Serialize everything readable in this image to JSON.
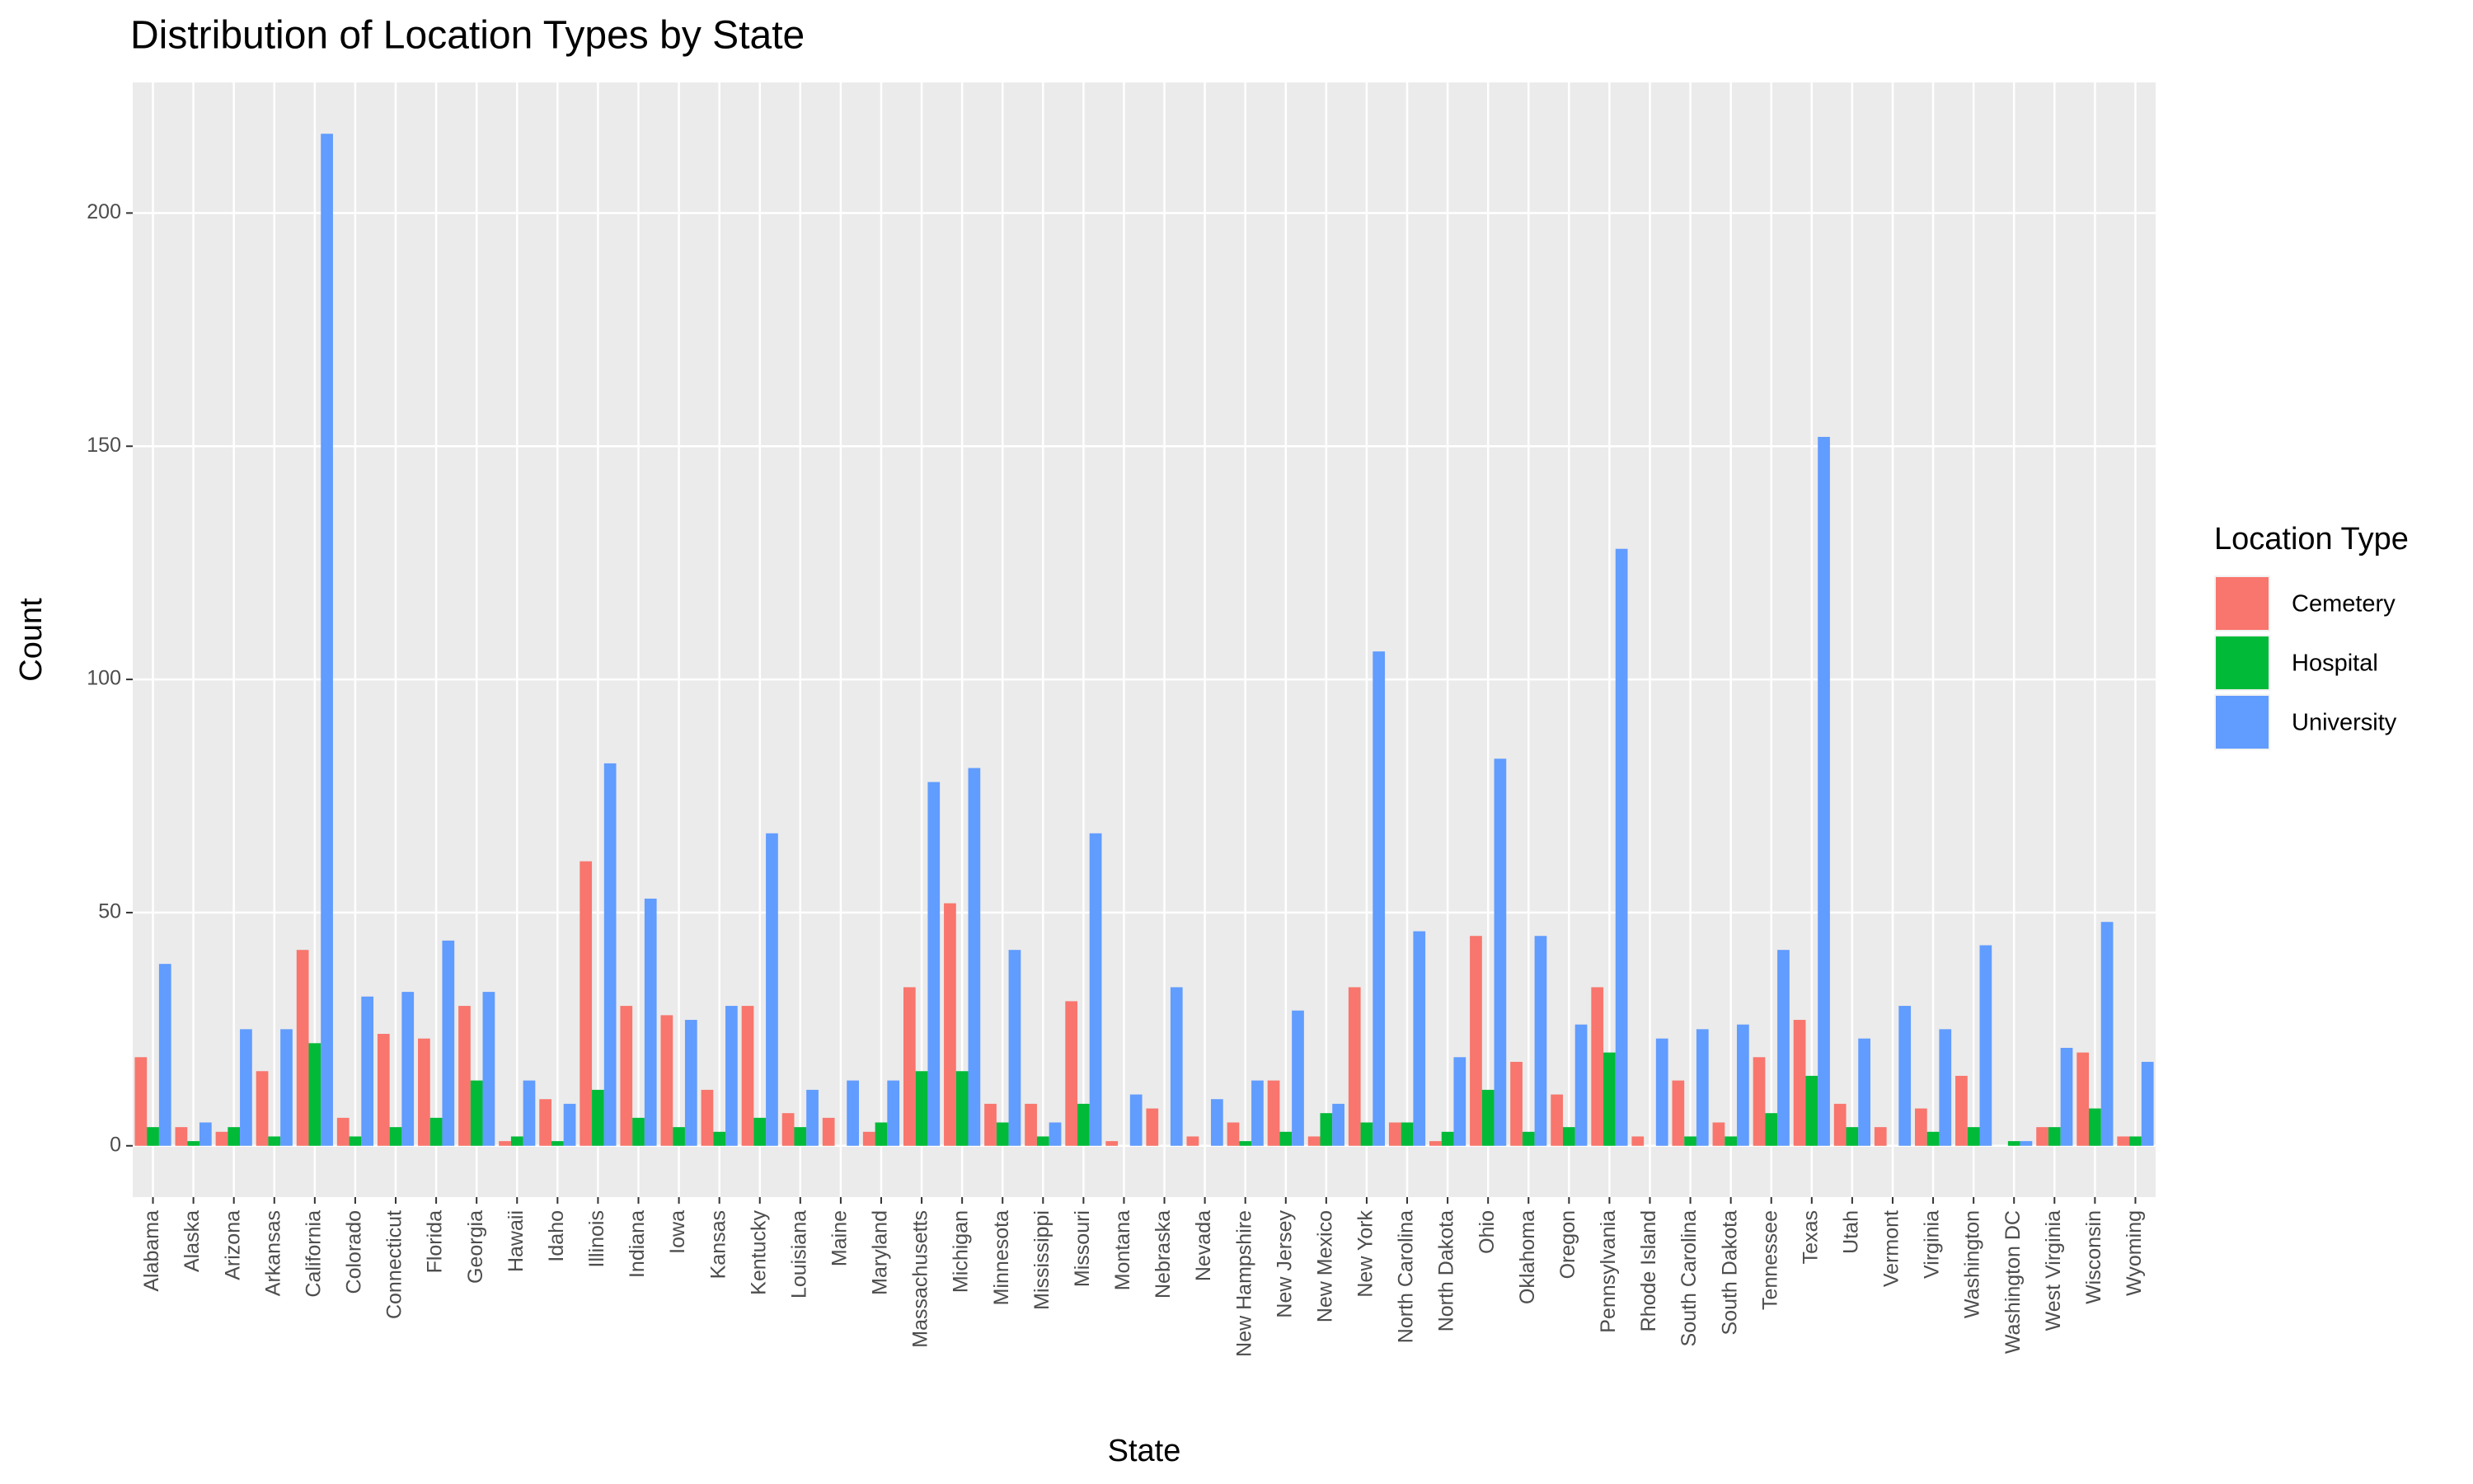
{
  "chart_data": {
    "type": "bar",
    "title": "Distribution of Location Types by State",
    "x_label": "State",
    "y_label": "Count",
    "legend_title": "Location Type",
    "categories": [
      "Alabama",
      "Alaska",
      "Arizona",
      "Arkansas",
      "California",
      "Colorado",
      "Connecticut",
      "Florida",
      "Georgia",
      "Hawaii",
      "Idaho",
      "Illinois",
      "Indiana",
      "Iowa",
      "Kansas",
      "Kentucky",
      "Louisiana",
      "Maine",
      "Maryland",
      "Massachusetts",
      "Michigan",
      "Minnesota",
      "Mississippi",
      "Missouri",
      "Montana",
      "Nebraska",
      "Nevada",
      "New Hampshire",
      "New Jersey",
      "New Mexico",
      "New York",
      "North Carolina",
      "North Dakota",
      "Ohio",
      "Oklahoma",
      "Oregon",
      "Pennsylvania",
      "Rhode Island",
      "South Carolina",
      "South Dakota",
      "Tennessee",
      "Texas",
      "Utah",
      "Vermont",
      "Virginia",
      "Washington",
      "Washington DC",
      "West Virginia",
      "Wisconsin",
      "Wyoming"
    ],
    "series": [
      {
        "name": "Cemetery",
        "color": "#f8766d",
        "values": [
          19,
          4,
          3,
          16,
          42,
          6,
          24,
          23,
          30,
          1,
          10,
          61,
          30,
          28,
          12,
          30,
          7,
          6,
          3,
          34,
          52,
          9,
          9,
          31,
          1,
          8,
          2,
          5,
          14,
          2,
          34,
          5,
          1,
          45,
          18,
          11,
          34,
          2,
          14,
          5,
          19,
          27,
          9,
          4,
          8,
          15,
          0,
          4,
          20,
          2
        ]
      },
      {
        "name": "Hospital",
        "color": "#00ba38",
        "values": [
          4,
          1,
          4,
          2,
          22,
          2,
          4,
          6,
          14,
          2,
          1,
          12,
          6,
          4,
          3,
          6,
          4,
          0,
          5,
          16,
          16,
          5,
          2,
          9,
          0,
          0,
          0,
          1,
          3,
          7,
          5,
          5,
          3,
          12,
          3,
          4,
          20,
          0,
          2,
          2,
          7,
          15,
          4,
          0,
          3,
          4,
          1,
          4,
          8,
          2
        ]
      },
      {
        "name": "University",
        "color": "#619cff",
        "values": [
          39,
          5,
          25,
          25,
          217,
          32,
          33,
          44,
          33,
          14,
          9,
          82,
          53,
          27,
          30,
          67,
          12,
          14,
          14,
          78,
          81,
          42,
          5,
          67,
          11,
          34,
          10,
          14,
          29,
          9,
          106,
          46,
          19,
          83,
          45,
          26,
          128,
          23,
          25,
          26,
          42,
          152,
          23,
          30,
          25,
          43,
          1,
          21,
          48,
          18
        ]
      }
    ],
    "ylim": [
      -11,
      228
    ],
    "yticks": [
      0,
      50,
      100,
      150,
      200
    ],
    "grid": true
  }
}
